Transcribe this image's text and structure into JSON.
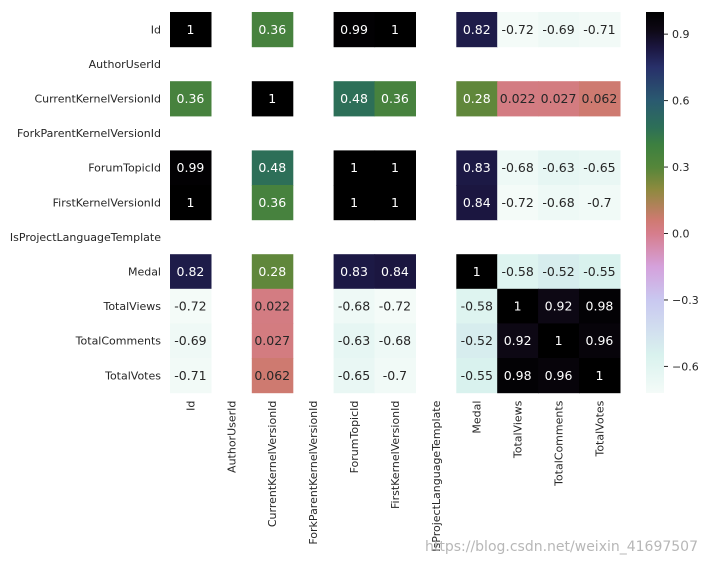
{
  "chart_data": {
    "type": "heatmap",
    "title": "",
    "labels": [
      "Id",
      "AuthorUserId",
      "CurrentKernelVersionId",
      "ForkParentKernelVersionId",
      "ForumTopicId",
      "FirstKernelVersionId",
      "IsProjectLanguageTemplate",
      "Medal",
      "TotalViews",
      "TotalComments",
      "TotalVotes"
    ],
    "matrix": [
      [
        1,
        null,
        0.36,
        null,
        0.99,
        1,
        null,
        0.82,
        -0.72,
        -0.69,
        -0.71
      ],
      [
        null,
        null,
        null,
        null,
        null,
        null,
        null,
        null,
        null,
        null,
        null
      ],
      [
        0.36,
        null,
        1,
        null,
        0.48,
        0.36,
        null,
        0.28,
        0.022,
        0.027,
        0.062
      ],
      [
        null,
        null,
        null,
        null,
        null,
        null,
        null,
        null,
        null,
        null,
        null
      ],
      [
        0.99,
        null,
        0.48,
        null,
        1,
        1,
        null,
        0.83,
        -0.68,
        -0.63,
        -0.65
      ],
      [
        1,
        null,
        0.36,
        null,
        1,
        1,
        null,
        0.84,
        -0.72,
        -0.68,
        -0.7
      ],
      [
        null,
        null,
        null,
        null,
        null,
        null,
        null,
        null,
        null,
        null,
        null
      ],
      [
        0.82,
        null,
        0.28,
        null,
        0.83,
        0.84,
        null,
        1,
        -0.58,
        -0.52,
        -0.55
      ],
      [
        -0.72,
        null,
        0.022,
        null,
        -0.68,
        -0.72,
        null,
        -0.58,
        1,
        0.92,
        0.98
      ],
      [
        -0.69,
        null,
        0.027,
        null,
        -0.63,
        -0.68,
        null,
        -0.52,
        0.92,
        1,
        0.96
      ],
      [
        -0.71,
        null,
        0.062,
        null,
        -0.65,
        -0.7,
        null,
        -0.55,
        0.98,
        0.96,
        1
      ]
    ],
    "cell_labels": [
      [
        "1",
        "",
        "0.36",
        "",
        "0.99",
        "1",
        "",
        "0.82",
        "-0.72",
        "-0.69",
        "-0.71"
      ],
      [
        "",
        "",
        "",
        "",
        "",
        "",
        "",
        "",
        "",
        "",
        ""
      ],
      [
        "0.36",
        "",
        "1",
        "",
        "0.48",
        "0.36",
        "",
        "0.28",
        "0.022",
        "0.027",
        "0.062"
      ],
      [
        "",
        "",
        "",
        "",
        "",
        "",
        "",
        "",
        "",
        "",
        ""
      ],
      [
        "0.99",
        "",
        "0.48",
        "",
        "1",
        "1",
        "",
        "0.83",
        "-0.68",
        "-0.63",
        "-0.65"
      ],
      [
        "1",
        "",
        "0.36",
        "",
        "1",
        "1",
        "",
        "0.84",
        "-0.72",
        "-0.68",
        "-0.7"
      ],
      [
        "",
        "",
        "",
        "",
        "",
        "",
        "",
        "",
        "",
        "",
        ""
      ],
      [
        "0.82",
        "",
        "0.28",
        "",
        "0.83",
        "0.84",
        "",
        "1",
        "-0.58",
        "-0.52",
        "-0.55"
      ],
      [
        "-0.72",
        "",
        "0.022",
        "",
        "-0.68",
        "-0.72",
        "",
        "-0.58",
        "1",
        "0.92",
        "0.98"
      ],
      [
        "-0.69",
        "",
        "0.027",
        "",
        "-0.63",
        "-0.68",
        "",
        "-0.52",
        "0.92",
        "1",
        "0.96"
      ],
      [
        "-0.71",
        "",
        "0.062",
        "",
        "-0.65",
        "-0.7",
        "",
        "-0.55",
        "0.98",
        "0.96",
        "1"
      ]
    ],
    "vmin": -0.72,
    "vmax": 1.0,
    "colormap": "cubehelix_r",
    "colormap_stops": [
      {
        "v": -0.72,
        "color": "#f4fbf8"
      },
      {
        "v": -0.55,
        "color": "#d9f2ee"
      },
      {
        "v": -0.3,
        "color": "#c9c8f0"
      },
      {
        "v": -0.15,
        "color": "#d5a1dc"
      },
      {
        "v": 0.0,
        "color": "#d67d8c"
      },
      {
        "v": 0.06,
        "color": "#cf7a71"
      },
      {
        "v": 0.2,
        "color": "#8d8a3e"
      },
      {
        "v": 0.3,
        "color": "#55863a"
      },
      {
        "v": 0.4,
        "color": "#3d8040"
      },
      {
        "v": 0.48,
        "color": "#2d6f58"
      },
      {
        "v": 0.6,
        "color": "#2a5a70"
      },
      {
        "v": 0.75,
        "color": "#28306a"
      },
      {
        "v": 0.84,
        "color": "#1b1640"
      },
      {
        "v": 0.92,
        "color": "#0d0814"
      },
      {
        "v": 1.0,
        "color": "#000000"
      }
    ],
    "colorbar_ticks": [
      {
        "value": 0.9,
        "label": "0.9"
      },
      {
        "value": 0.6,
        "label": "0.6"
      },
      {
        "value": 0.3,
        "label": "0.3"
      },
      {
        "value": 0.0,
        "label": "0.0"
      },
      {
        "value": -0.3,
        "label": "−0.3"
      },
      {
        "value": -0.6,
        "label": "−0.6"
      }
    ],
    "colors": {
      "text_dark_cell": "#ffffff",
      "text_light_cell": "#262626",
      "tick": "#262626"
    }
  },
  "watermark": "https://blog.csdn.net/weixin_41697507"
}
